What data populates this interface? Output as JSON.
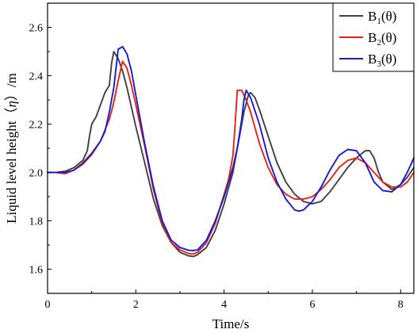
{
  "chart_data": {
    "type": "line",
    "title": "",
    "xlabel": "Time/s",
    "ylabel_prefix": "Liquid level height（",
    "ylabel_symbol": "η",
    "ylabel_suffix": "）/m",
    "xlim": [
      0,
      8.3
    ],
    "ylim": [
      1.5,
      2.7
    ],
    "xticks": [
      "0",
      "2",
      "4",
      "6",
      "8"
    ],
    "yticks": [
      "1.6",
      "1.8",
      "2.0",
      "2.2",
      "2.4",
      "2.6"
    ],
    "grid": false,
    "legend_position": "top-right",
    "series": [
      {
        "name_main": "B",
        "name_sub": "1",
        "name_tail": "(θ)",
        "color": "#404040",
        "points": [
          [
            0,
            2.0
          ],
          [
            0.2,
            2.0
          ],
          [
            0.4,
            2.005
          ],
          [
            0.6,
            2.02
          ],
          [
            0.8,
            2.05
          ],
          [
            0.9,
            2.09
          ],
          [
            0.95,
            2.15
          ],
          [
            1.0,
            2.2
          ],
          [
            1.1,
            2.23
          ],
          [
            1.2,
            2.28
          ],
          [
            1.3,
            2.33
          ],
          [
            1.4,
            2.36
          ],
          [
            1.45,
            2.45
          ],
          [
            1.5,
            2.5
          ],
          [
            1.6,
            2.47
          ],
          [
            1.7,
            2.42
          ],
          [
            1.8,
            2.35
          ],
          [
            1.9,
            2.27
          ],
          [
            2.0,
            2.19
          ],
          [
            2.2,
            2.04
          ],
          [
            2.4,
            1.89
          ],
          [
            2.6,
            1.78
          ],
          [
            2.8,
            1.71
          ],
          [
            3.0,
            1.67
          ],
          [
            3.2,
            1.655
          ],
          [
            3.3,
            1.652
          ],
          [
            3.4,
            1.66
          ],
          [
            3.6,
            1.69
          ],
          [
            3.8,
            1.76
          ],
          [
            4.0,
            1.87
          ],
          [
            4.2,
            2.0
          ],
          [
            4.35,
            2.15
          ],
          [
            4.45,
            2.25
          ],
          [
            4.55,
            2.32
          ],
          [
            4.6,
            2.33
          ],
          [
            4.7,
            2.31
          ],
          [
            4.8,
            2.26
          ],
          [
            5.0,
            2.15
          ],
          [
            5.2,
            2.04
          ],
          [
            5.4,
            1.96
          ],
          [
            5.6,
            1.91
          ],
          [
            5.8,
            1.88
          ],
          [
            6.0,
            1.87
          ],
          [
            6.2,
            1.88
          ],
          [
            6.4,
            1.92
          ],
          [
            6.6,
            1.97
          ],
          [
            6.8,
            2.02
          ],
          [
            7.0,
            2.06
          ],
          [
            7.2,
            2.09
          ],
          [
            7.3,
            2.09
          ],
          [
            7.4,
            2.06
          ],
          [
            7.5,
            2.0
          ],
          [
            7.6,
            1.96
          ],
          [
            7.8,
            1.93
          ],
          [
            8.0,
            1.95
          ],
          [
            8.15,
            1.98
          ],
          [
            8.3,
            2.02
          ]
        ]
      },
      {
        "name_main": "B",
        "name_sub": "2",
        "name_tail": "(θ)",
        "color": "#e8221a",
        "points": [
          [
            0,
            2.0
          ],
          [
            0.2,
            2.0
          ],
          [
            0.4,
            1.995
          ],
          [
            0.6,
            2.01
          ],
          [
            0.8,
            2.04
          ],
          [
            1.0,
            2.08
          ],
          [
            1.2,
            2.13
          ],
          [
            1.4,
            2.22
          ],
          [
            1.5,
            2.29
          ],
          [
            1.6,
            2.38
          ],
          [
            1.7,
            2.46
          ],
          [
            1.8,
            2.43
          ],
          [
            1.9,
            2.36
          ],
          [
            2.0,
            2.28
          ],
          [
            2.2,
            2.11
          ],
          [
            2.4,
            1.93
          ],
          [
            2.6,
            1.79
          ],
          [
            2.8,
            1.71
          ],
          [
            3.0,
            1.68
          ],
          [
            3.2,
            1.665
          ],
          [
            3.3,
            1.663
          ],
          [
            3.4,
            1.67
          ],
          [
            3.6,
            1.71
          ],
          [
            3.8,
            1.79
          ],
          [
            4.0,
            1.91
          ],
          [
            4.1,
            1.97
          ],
          [
            4.2,
            2.07
          ],
          [
            4.25,
            2.2
          ],
          [
            4.3,
            2.34
          ],
          [
            4.4,
            2.34
          ],
          [
            4.5,
            2.3
          ],
          [
            4.6,
            2.25
          ],
          [
            4.8,
            2.12
          ],
          [
            5.0,
            2.02
          ],
          [
            5.2,
            1.95
          ],
          [
            5.4,
            1.91
          ],
          [
            5.6,
            1.89
          ],
          [
            5.8,
            1.89
          ],
          [
            6.0,
            1.9
          ],
          [
            6.2,
            1.93
          ],
          [
            6.4,
            1.97
          ],
          [
            6.6,
            2.02
          ],
          [
            6.8,
            2.05
          ],
          [
            7.0,
            2.06
          ],
          [
            7.2,
            2.04
          ],
          [
            7.4,
            2.0
          ],
          [
            7.6,
            1.96
          ],
          [
            7.8,
            1.94
          ],
          [
            8.0,
            1.94
          ],
          [
            8.15,
            1.96
          ],
          [
            8.3,
            2.0
          ]
        ]
      },
      {
        "name_main": "B",
        "name_sub": "3",
        "name_tail": "(θ)",
        "color": "#1a1ad0",
        "points": [
          [
            0,
            2.0
          ],
          [
            0.2,
            2.0
          ],
          [
            0.4,
            2.0
          ],
          [
            0.6,
            2.01
          ],
          [
            0.8,
            2.035
          ],
          [
            1.0,
            2.075
          ],
          [
            1.2,
            2.13
          ],
          [
            1.3,
            2.17
          ],
          [
            1.4,
            2.25
          ],
          [
            1.5,
            2.35
          ],
          [
            1.55,
            2.43
          ],
          [
            1.6,
            2.51
          ],
          [
            1.7,
            2.52
          ],
          [
            1.8,
            2.49
          ],
          [
            1.9,
            2.42
          ],
          [
            2.0,
            2.32
          ],
          [
            2.2,
            2.12
          ],
          [
            2.4,
            1.94
          ],
          [
            2.6,
            1.8
          ],
          [
            2.8,
            1.72
          ],
          [
            3.0,
            1.69
          ],
          [
            3.2,
            1.678
          ],
          [
            3.3,
            1.677
          ],
          [
            3.4,
            1.68
          ],
          [
            3.6,
            1.72
          ],
          [
            3.8,
            1.8
          ],
          [
            4.0,
            1.9
          ],
          [
            4.2,
            2.02
          ],
          [
            4.3,
            2.1
          ],
          [
            4.4,
            2.22
          ],
          [
            4.45,
            2.3
          ],
          [
            4.5,
            2.34
          ],
          [
            4.6,
            2.31
          ],
          [
            4.8,
            2.2
          ],
          [
            5.0,
            2.06
          ],
          [
            5.2,
            1.96
          ],
          [
            5.4,
            1.89
          ],
          [
            5.6,
            1.845
          ],
          [
            5.7,
            1.84
          ],
          [
            5.8,
            1.845
          ],
          [
            6.0,
            1.88
          ],
          [
            6.2,
            1.94
          ],
          [
            6.4,
            2.01
          ],
          [
            6.6,
            2.07
          ],
          [
            6.8,
            2.095
          ],
          [
            7.0,
            2.09
          ],
          [
            7.2,
            2.04
          ],
          [
            7.4,
            1.96
          ],
          [
            7.6,
            1.925
          ],
          [
            7.8,
            1.92
          ],
          [
            8.0,
            1.95
          ],
          [
            8.15,
            2.0
          ],
          [
            8.3,
            2.06
          ]
        ]
      }
    ]
  }
}
